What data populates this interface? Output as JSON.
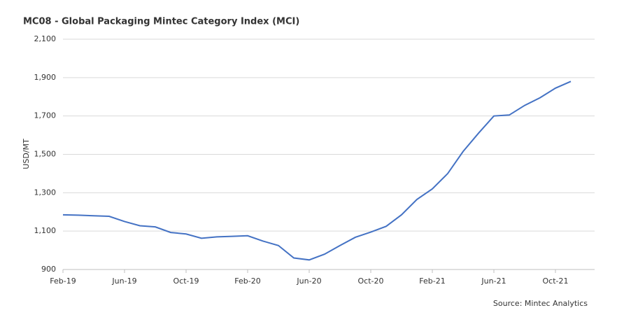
{
  "chart_data": {
    "type": "line",
    "title": "MC08 - Global Packaging Mintec Category Index (MCI)",
    "y_label": "USD/MT",
    "source": "Source: Mintec Analytics",
    "categories": [
      "Feb-19",
      null,
      null,
      null,
      "Jun-19",
      null,
      null,
      null,
      "Oct-19",
      null,
      null,
      null,
      "Feb-20",
      null,
      null,
      null,
      "Jun-20",
      null,
      null,
      null,
      "Oct-20",
      null,
      null,
      null,
      "Feb-21",
      null,
      null,
      null,
      "Jun-21",
      null,
      null,
      null,
      "Oct-21",
      null
    ],
    "series": [
      {
        "name": "MCI",
        "color": "#4472c4",
        "values": [
          1185,
          1183,
          1180,
          1177,
          1150,
          1128,
          1122,
          1093,
          1085,
          1063,
          1070,
          1073,
          1076,
          1048,
          1025,
          960,
          950,
          980,
          1025,
          1068,
          1095,
          1125,
          1185,
          1265,
          1320,
          1400,
          1515,
          1610,
          1700,
          1705,
          1755,
          1795,
          1845,
          1880
        ]
      }
    ],
    "ylim": [
      900,
      2100
    ],
    "yticks": [
      900,
      {
        "value": 1100,
        "label": "1,100"
      },
      {
        "value": 1300,
        "label": "1,300"
      },
      {
        "value": 1500,
        "label": "1,500"
      },
      {
        "value": 1700,
        "label": "1,700"
      },
      {
        "value": 1900,
        "label": "1,900"
      },
      {
        "value": 2100,
        "label": "2,100"
      }
    ],
    "grid": true
  }
}
